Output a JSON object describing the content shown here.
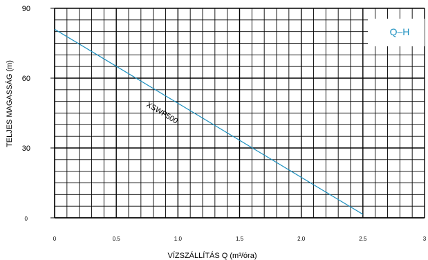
{
  "chart_data": {
    "type": "line",
    "xlabel": "VÍZSZÁLLÍTÁS Q (m³/óra)",
    "ylabel": "TELJES MAGASSÁG (m)",
    "xlim": [
      0,
      3
    ],
    "ylim": [
      0,
      90
    ],
    "x_ticks": [
      0,
      0.5,
      1.0,
      1.5,
      2.0,
      2.5,
      3
    ],
    "x_tick_labels": [
      "0",
      "0.5",
      "1.0",
      "1.5",
      "2.0",
      "2.5",
      "3"
    ],
    "y_ticks": [
      0,
      30,
      60,
      90
    ],
    "y_tick_labels": [
      "0",
      "30",
      "60",
      "90"
    ],
    "grid": true,
    "legend": {
      "text": "Q–H",
      "placement": "top-right",
      "color": "#1a8fbf"
    },
    "series": [
      {
        "name": "XSWP500",
        "color": "#1a8fbf",
        "x": [
          0,
          2.5
        ],
        "y": [
          81,
          1.5
        ]
      }
    ]
  }
}
